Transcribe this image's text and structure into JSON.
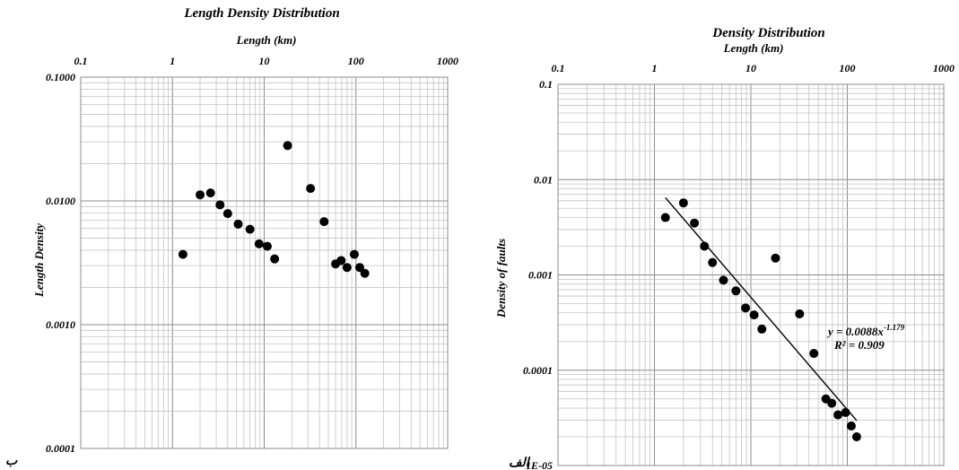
{
  "chart_data": [
    {
      "type": "scatter",
      "title": "Length Density Distribution",
      "xlabel": "Length (km)",
      "ylabel": "Length Density",
      "x_scale": "log",
      "y_scale": "log",
      "xlim": [
        0.1,
        1000
      ],
      "ylim": [
        0.0001,
        0.1
      ],
      "x_ticks": [
        "0.1",
        "1",
        "10",
        "100",
        "1000"
      ],
      "y_ticks": [
        "0.1000",
        "0.0100",
        "0.0010",
        "0.0001"
      ],
      "x_axis_position": "top",
      "grid": true,
      "corner_label": "ب",
      "points": [
        {
          "x": 1.3,
          "y": 0.0037
        },
        {
          "x": 2.0,
          "y": 0.0112
        },
        {
          "x": 2.6,
          "y": 0.0116
        },
        {
          "x": 3.3,
          "y": 0.0093
        },
        {
          "x": 4.0,
          "y": 0.0079
        },
        {
          "x": 5.2,
          "y": 0.0065
        },
        {
          "x": 7.0,
          "y": 0.0059
        },
        {
          "x": 8.8,
          "y": 0.0045
        },
        {
          "x": 10.8,
          "y": 0.0043
        },
        {
          "x": 13.0,
          "y": 0.0034
        },
        {
          "x": 18.0,
          "y": 0.028
        },
        {
          "x": 32.0,
          "y": 0.0126
        },
        {
          "x": 45.0,
          "y": 0.0068
        },
        {
          "x": 60.0,
          "y": 0.0031
        },
        {
          "x": 69.0,
          "y": 0.0033
        },
        {
          "x": 80.0,
          "y": 0.0029
        },
        {
          "x": 96.0,
          "y": 0.0037
        },
        {
          "x": 110.0,
          "y": 0.0029
        },
        {
          "x": 125.0,
          "y": 0.0026
        }
      ]
    },
    {
      "type": "scatter",
      "title": "Density Distribution",
      "xlabel": "Length (km)",
      "ylabel": "Density of faults",
      "x_scale": "log",
      "y_scale": "log",
      "xlim": [
        0.1,
        1000
      ],
      "ylim": [
        1e-05,
        0.1
      ],
      "x_ticks": [
        "0.1",
        "1",
        "10",
        "100",
        "1000"
      ],
      "y_ticks": [
        "0.1",
        "0.01",
        "0.001",
        "0.0001",
        "1E-05"
      ],
      "x_axis_position": "top",
      "grid": true,
      "corner_label": "الف",
      "trendline": {
        "equation": "y = 0.0088x",
        "exponent": "-1.179",
        "r_squared": "R² = 0.909",
        "a": 0.0088,
        "b": -1.179,
        "x_range": [
          1.3,
          125
        ]
      },
      "points": [
        {
          "x": 1.3,
          "y": 0.004
        },
        {
          "x": 2.0,
          "y": 0.0057
        },
        {
          "x": 2.6,
          "y": 0.0035
        },
        {
          "x": 3.3,
          "y": 0.002
        },
        {
          "x": 4.0,
          "y": 0.00135
        },
        {
          "x": 5.2,
          "y": 0.00088
        },
        {
          "x": 7.0,
          "y": 0.00068
        },
        {
          "x": 8.8,
          "y": 0.00045
        },
        {
          "x": 10.8,
          "y": 0.00038
        },
        {
          "x": 13.0,
          "y": 0.00027
        },
        {
          "x": 18.0,
          "y": 0.0015
        },
        {
          "x": 32.0,
          "y": 0.00039
        },
        {
          "x": 45.0,
          "y": 0.00015
        },
        {
          "x": 60.0,
          "y": 5e-05
        },
        {
          "x": 69.0,
          "y": 4.5e-05
        },
        {
          "x": 80.0,
          "y": 3.4e-05
        },
        {
          "x": 96.0,
          "y": 3.6e-05
        },
        {
          "x": 110.0,
          "y": 2.6e-05
        },
        {
          "x": 125.0,
          "y": 2e-05
        }
      ]
    }
  ]
}
